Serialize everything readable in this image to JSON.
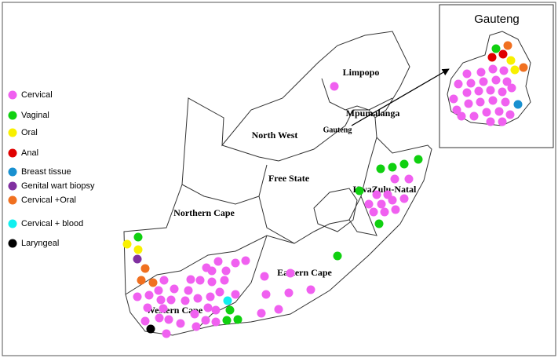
{
  "legend": [
    {
      "label": "Cervical",
      "color": "#f060f0"
    },
    {
      "label": "Vaginal",
      "color": "#10d010"
    },
    {
      "label": "Oral",
      "color": "#f8f000"
    },
    {
      "label": "Anal",
      "color": "#e00000"
    },
    {
      "label": "Breast tissue",
      "color": "#1890d0"
    },
    {
      "label": "Genital wart biopsy",
      "color": "#8030a0"
    },
    {
      "label": "Cervical +Oral",
      "color": "#f07020"
    },
    {
      "label": "Cervical + blood",
      "color": "#10f0f0"
    },
    {
      "label": "Laryngeal",
      "color": "#000000"
    }
  ],
  "provinces": [
    "Limpopo",
    "Mpumalanga",
    "North West",
    "Gauteng",
    "Free State",
    "KwaZulu-Natal",
    "Northern Cape",
    "Eastern Cape",
    "Western Cape"
  ],
  "inset": {
    "title": "Gauteng"
  }
}
